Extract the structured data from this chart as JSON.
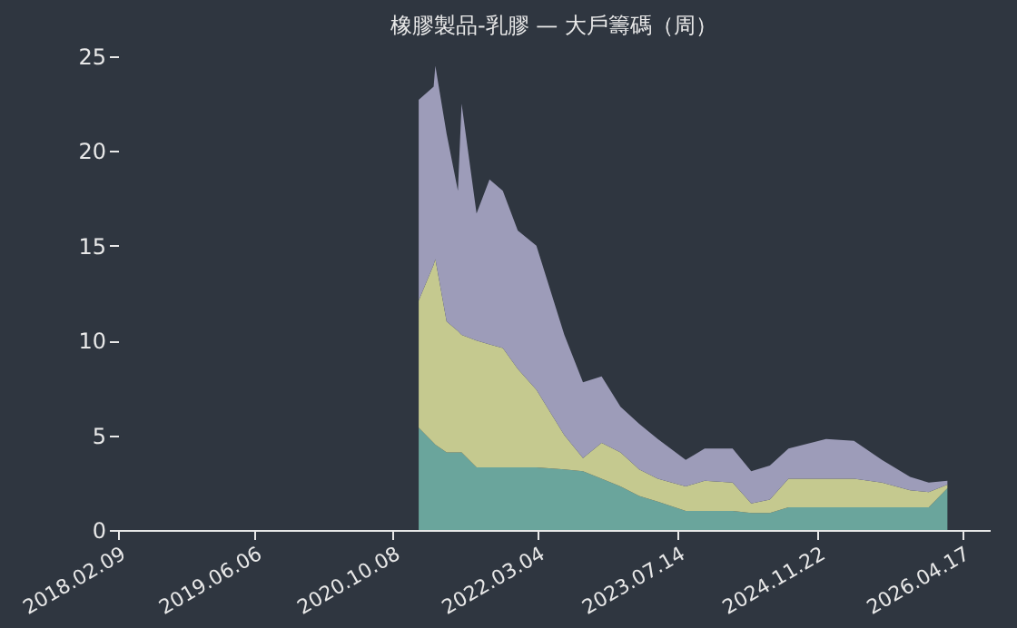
{
  "chart_data": {
    "type": "area",
    "stacked": true,
    "title": "橡膠製品-乳膠 — 大戶籌碼（周）",
    "x": [
      "2021-01-09",
      "2021-03-03",
      "2021-03-09",
      "2021-04-18",
      "2021-05-28",
      "2021-06-10",
      "2021-08-02",
      "2021-09-17",
      "2021-11-03",
      "2021-12-26",
      "2022-03-02",
      "2022-06-09",
      "2022-08-14",
      "2022-10-19",
      "2022-12-25",
      "2023-03-01",
      "2023-05-06",
      "2023-08-13",
      "2023-10-19",
      "2024-01-26",
      "2024-04-01",
      "2024-06-06",
      "2024-08-11",
      "2024-12-22",
      "2025-03-31",
      "2025-07-08",
      "2025-10-16",
      "2025-12-21",
      "2026-02-25"
    ],
    "series": [
      {
        "color": "#6aa59c",
        "values": [
          5.4,
          4.6,
          4.5,
          4.1,
          4.1,
          4.1,
          3.3,
          3.3,
          3.3,
          3.3,
          3.3,
          3.2,
          3.1,
          2.7,
          2.3,
          1.8,
          1.5,
          1.0,
          1.0,
          1.0,
          0.9,
          0.9,
          1.2,
          1.2,
          1.2,
          1.2,
          1.2,
          1.2,
          2.2
        ]
      },
      {
        "color": "#c5c98f",
        "values": [
          6.7,
          9.4,
          9.8,
          6.9,
          6.4,
          6.2,
          6.7,
          6.5,
          6.3,
          5.2,
          4.1,
          1.8,
          0.7,
          1.9,
          1.8,
          1.4,
          1.2,
          1.3,
          1.6,
          1.5,
          0.5,
          0.7,
          1.5,
          1.5,
          1.5,
          1.3,
          0.9,
          0.8,
          0.2
        ]
      },
      {
        "color": "#9d9cb9",
        "values": [
          10.6,
          9.4,
          10.2,
          9.9,
          7.4,
          12.2,
          6.7,
          8.7,
          8.3,
          7.3,
          7.6,
          5.3,
          4.0,
          3.5,
          2.4,
          2.4,
          2.1,
          1.4,
          1.7,
          1.8,
          1.7,
          1.8,
          1.6,
          2.1,
          2.0,
          1.2,
          0.7,
          0.5,
          0.2
        ]
      }
    ],
    "xlim": [
      "2018-02-09",
      "2026-07-25"
    ],
    "xticks": [
      {
        "value": "2018-02-09",
        "label": "2018.02.09"
      },
      {
        "value": "2019-06-06",
        "label": "2019.06.06"
      },
      {
        "value": "2020-10-08",
        "label": "2020.10.08"
      },
      {
        "value": "2022-03-04",
        "label": "2022.03.04"
      },
      {
        "value": "2023-07-14",
        "label": "2023.07.14"
      },
      {
        "value": "2024-11-22",
        "label": "2024.11.22"
      },
      {
        "value": "2026-04-17",
        "label": "2026.04.17"
      }
    ],
    "ylim": [
      0,
      25
    ],
    "yticks": [
      0,
      5,
      10,
      15,
      20,
      25
    ],
    "grid": false,
    "legend": false
  }
}
